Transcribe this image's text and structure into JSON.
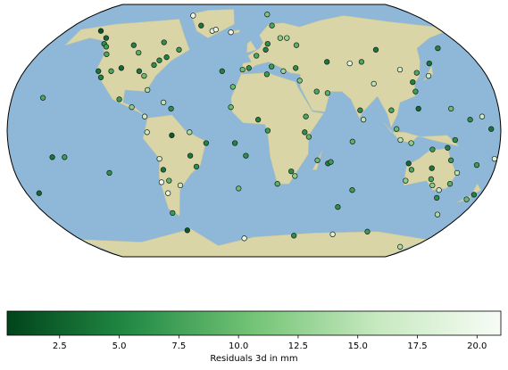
{
  "chart_data": {
    "type": "map-scatter",
    "projection": "robinson",
    "x": [
      -147,
      -68,
      -53,
      -135,
      -132,
      -123,
      -128,
      -105,
      -97,
      -80,
      -77,
      -72,
      -64,
      -105,
      -90,
      -80,
      -85,
      -80,
      -112,
      -118,
      -122,
      -40,
      -37,
      -22,
      -100,
      -90,
      -80,
      -61,
      -67,
      -78,
      -60,
      -47,
      -35,
      -43,
      -47,
      -70,
      -68,
      -71,
      -65,
      -57,
      -68,
      -70,
      -157,
      -149,
      -140,
      -170,
      -109,
      -16,
      -25,
      -9,
      -4,
      2,
      10,
      12,
      24,
      18,
      15,
      30,
      37,
      14,
      23,
      33,
      35,
      10,
      47,
      55,
      -17,
      3,
      10,
      38,
      37,
      40,
      28,
      18,
      31,
      -14,
      -6,
      -12,
      55,
      57,
      47,
      72,
      70,
      77,
      59,
      77,
      87,
      104,
      91,
      78,
      80,
      101,
      104,
      121,
      121,
      115,
      121,
      127,
      135,
      141,
      158,
      145,
      158,
      167,
      107,
      115,
      147,
      173,
      178,
      166,
      115,
      116,
      118,
      131,
      133,
      142,
      146,
      153,
      151,
      145,
      138,
      147,
      135,
      175,
      172,
      159,
      -64,
      -10,
      40,
      78,
      166,
      110
    ],
    "y": [
      65,
      77,
      69,
      60,
      56,
      49,
      54,
      55,
      50,
      57,
      45,
      47,
      52,
      40,
      38,
      42,
      35,
      26,
      38,
      34,
      38,
      65,
      66,
      64,
      20,
      15,
      9,
      14,
      18,
      -1,
      -3,
      -1,
      -8,
      -23,
      -16,
      -18,
      -25,
      -33,
      -32,
      -35,
      -40,
      -53,
      21,
      -17,
      -17,
      -40,
      -27,
      28,
      38,
      39,
      40,
      48,
      52,
      56,
      60,
      69,
      78,
      60,
      55,
      41,
      38,
      40,
      32,
      36,
      25,
      24,
      15,
      7,
      0,
      9,
      -1,
      -4,
      -26,
      -34,
      -29,
      -8,
      -16,
      -37,
      -21,
      -20,
      -19,
      -7,
      -49,
      -38,
      44,
      43,
      44,
      52,
      30,
      13,
      7,
      13,
      1,
      14,
      31,
      39,
      25,
      37,
      35,
      43,
      53,
      14,
      7,
      9,
      -6,
      -8,
      -6,
      1,
      -18,
      -22,
      -21,
      -32,
      -25,
      -12,
      -24,
      -11,
      -19,
      -27,
      -34,
      -38,
      -35,
      -43,
      -31,
      -41,
      -44,
      -54,
      -65,
      -71,
      -69,
      -68,
      -78,
      -66
    ],
    "values": [
      1.5,
      20,
      4,
      3,
      6,
      8,
      7,
      5,
      9,
      6,
      6,
      5,
      7,
      3,
      4,
      6,
      10,
      14,
      8,
      5,
      4,
      19,
      19,
      20,
      7,
      12,
      16,
      6,
      15,
      16,
      2,
      14,
      5,
      6,
      4,
      17,
      4,
      20,
      9,
      16,
      19,
      7,
      8,
      4,
      7,
      3,
      6,
      10,
      5,
      10,
      6,
      8,
      5,
      6,
      12,
      8,
      11,
      13,
      9,
      7,
      13,
      6,
      11,
      7,
      8,
      9,
      10,
      5,
      7,
      8,
      6,
      9,
      6,
      9,
      12,
      5,
      6,
      10,
      5,
      7,
      10,
      9,
      6,
      7,
      4,
      19,
      8,
      4,
      15,
      6,
      15,
      8,
      10,
      3,
      5,
      17,
      7,
      8,
      16,
      4,
      5,
      10,
      6,
      16,
      15,
      12,
      6,
      4,
      18,
      7,
      3,
      12,
      8,
      7,
      4,
      5,
      7,
      15,
      9,
      16,
      12,
      6,
      8,
      5,
      10,
      14,
      2,
      19,
      6,
      18,
      14,
      7
    ],
    "colors": [
      "#00441b",
      "#238b45",
      "#74c476",
      "#c7e9c0",
      "#f7fcf5"
    ],
    "colorbar": {
      "label": "Residuals 3d in mm",
      "lim": [
        0.3,
        21.0
      ],
      "ticks": [
        2.5,
        {
          "value": 5,
          "label": "5.0"
        },
        7.5,
        {
          "value": 10,
          "label": "10.0"
        },
        12.5,
        {
          "value": 15,
          "label": "15.0"
        },
        17.5,
        {
          "value": 20,
          "label": "20.0"
        }
      ]
    }
  }
}
